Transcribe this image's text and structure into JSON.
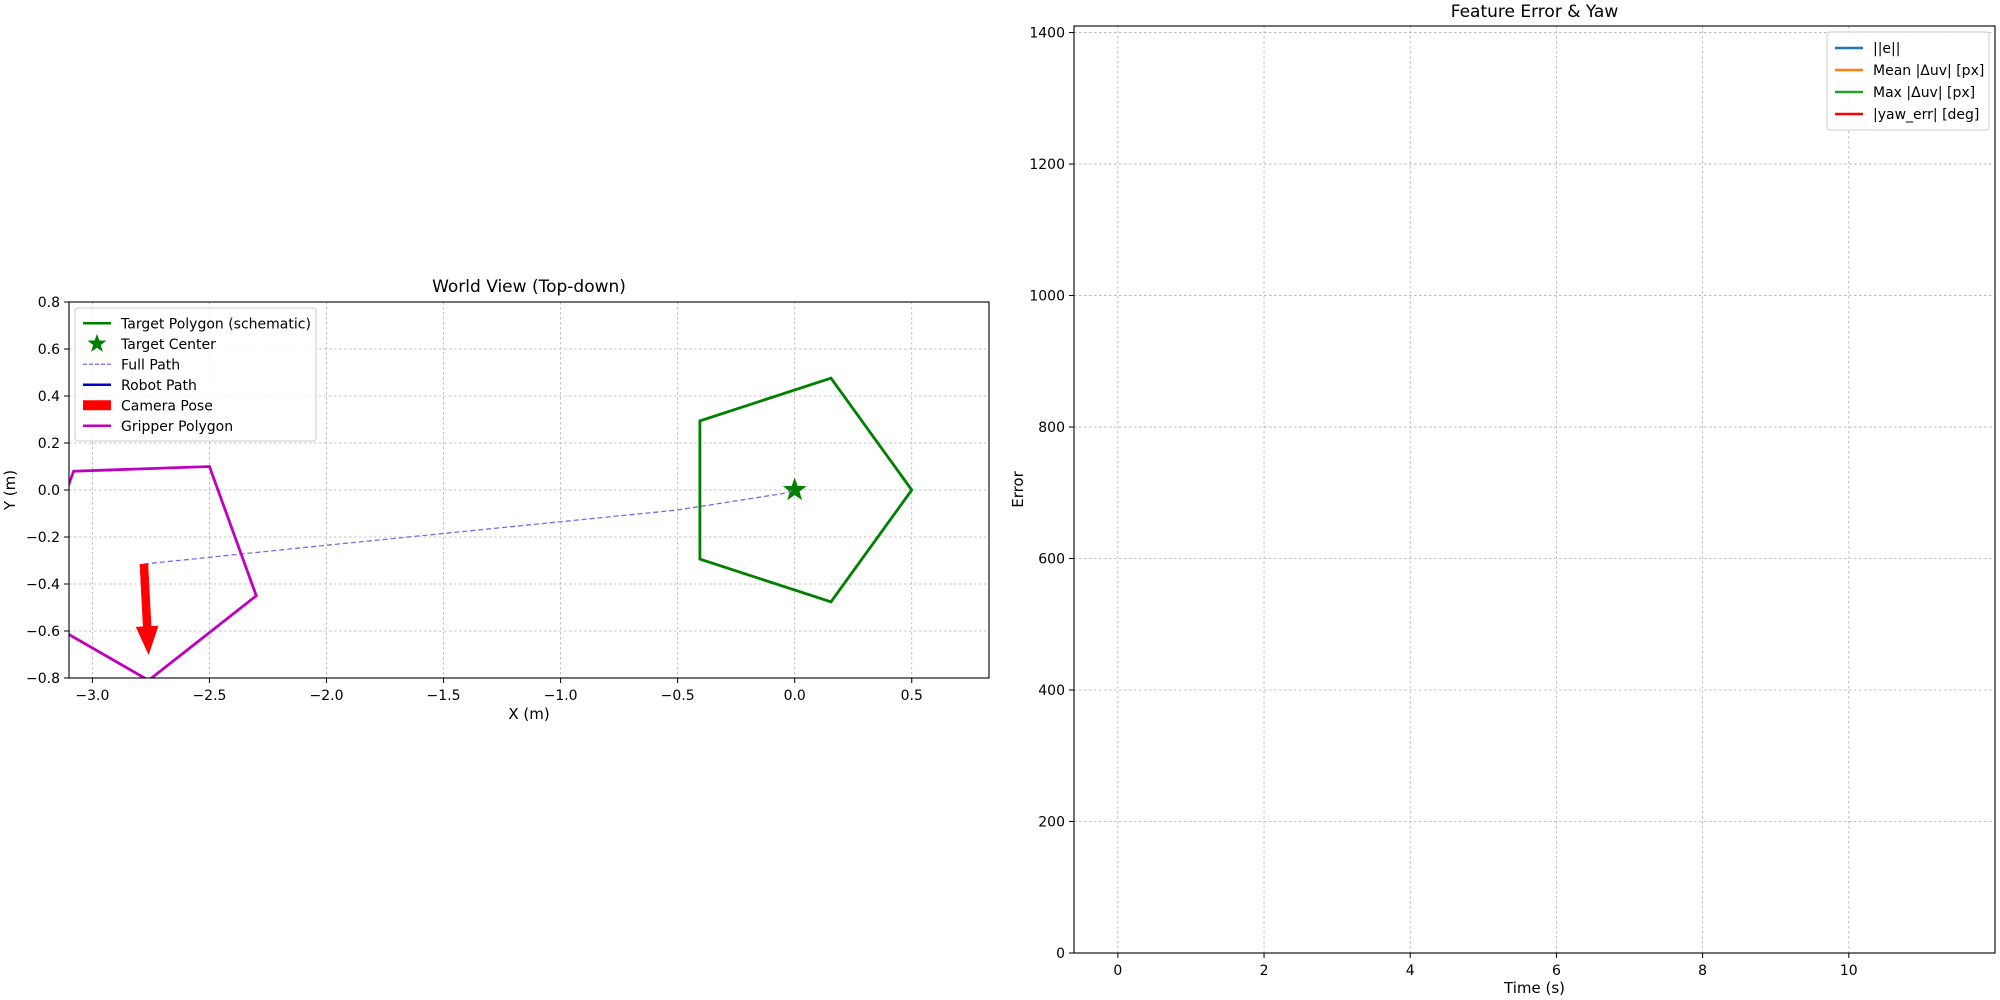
{
  "chart_data": [
    {
      "type": "line",
      "title": "World View (Top-down)",
      "xlabel": "X (m)",
      "ylabel": "Y (m)",
      "xlim": [
        -3.1,
        0.83
      ],
      "ylim": [
        -0.8,
        0.8
      ],
      "xticks": [
        -3.0,
        -2.5,
        -2.0,
        -1.5,
        -1.0,
        -0.5,
        0.0,
        0.5
      ],
      "xtick_labels": [
        "−3.0",
        "−2.5",
        "−2.0",
        "−1.5",
        "−1.0",
        "−0.5",
        "0.0",
        "0.5"
      ],
      "yticks": [
        -0.8,
        -0.6,
        -0.4,
        -0.2,
        0.0,
        0.2,
        0.4,
        0.6,
        0.8
      ],
      "ytick_labels": [
        "−0.8",
        "−0.6",
        "−0.4",
        "−0.2",
        "0.0",
        "0.2",
        "0.4",
        "0.6",
        "0.8"
      ],
      "grid": true,
      "legend_position": "upper-left",
      "series": [
        {
          "name": "Target Polygon (schematic)",
          "kind": "polygon",
          "color": "#008000",
          "points": [
            [
              0.5,
              0.0
            ],
            [
              0.155,
              0.476
            ],
            [
              -0.405,
              0.294
            ],
            [
              -0.405,
              -0.294
            ],
            [
              0.155,
              -0.476
            ]
          ]
        },
        {
          "name": "Target Center",
          "kind": "star-marker",
          "color": "#008000",
          "points": [
            [
              0.0,
              0.0
            ]
          ]
        },
        {
          "name": "Full Path",
          "kind": "dashed-line",
          "color": "#7b68ee",
          "points": [
            [
              -2.78,
              -0.315
            ],
            [
              -2.0,
              -0.235
            ],
            [
              -1.0,
              -0.135
            ],
            [
              -0.5,
              -0.085
            ],
            [
              -0.05,
              -0.015
            ],
            [
              0.0,
              0.0
            ]
          ]
        },
        {
          "name": "Robot Path",
          "kind": "line",
          "color": "#0000cc",
          "points": []
        },
        {
          "name": "Camera Pose",
          "kind": "arrow",
          "color": "#ff0000",
          "points": [
            [
              -2.78,
              -0.315
            ],
            [
              -2.76,
              -0.7
            ]
          ]
        },
        {
          "name": "Gripper Polygon",
          "kind": "polygon",
          "color": "#bf00bf",
          "points": [
            [
              -2.3,
              -0.45
            ],
            [
              -2.5,
              0.1
            ],
            [
              -3.08,
              0.08
            ],
            [
              -3.3,
              -0.5
            ],
            [
              -2.76,
              -0.81
            ]
          ]
        }
      ]
    },
    {
      "type": "line",
      "title": "Feature Error & Yaw",
      "xlabel": "Time (s)",
      "ylabel": "Error",
      "xlim": [
        -0.6,
        12.0
      ],
      "ylim": [
        0,
        1410
      ],
      "xticks": [
        0,
        2,
        4,
        6,
        8,
        10
      ],
      "xtick_labels": [
        "0",
        "2",
        "4",
        "6",
        "8",
        "10"
      ],
      "yticks": [
        0,
        200,
        400,
        600,
        800,
        1000,
        1200,
        1400
      ],
      "ytick_labels": [
        "0",
        "200",
        "400",
        "600",
        "800",
        "1000",
        "1200",
        "1400"
      ],
      "grid": true,
      "legend_position": "upper-right",
      "series": [
        {
          "name": "||e||",
          "color": "#1f77b4",
          "points": []
        },
        {
          "name": "Mean |Δuv| [px]",
          "color": "#ff7f0e",
          "points": []
        },
        {
          "name": "Max |Δuv| [px]",
          "color": "#2ca02c",
          "points": []
        },
        {
          "name": "|yaw_err| [deg]",
          "color": "#ff0000",
          "points": []
        }
      ]
    }
  ]
}
